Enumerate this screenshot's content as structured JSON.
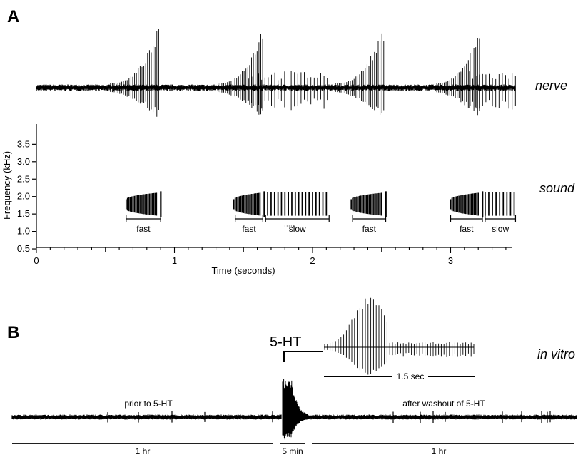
{
  "panel_a": {
    "letter": "A",
    "nerve_label": "nerve",
    "sound_label": "sound",
    "y_axis_label": "Frequency (kHz)",
    "x_axis_label": "Time (seconds)",
    "y_ticks": [
      "3.5",
      "3.0",
      "2.5",
      "2.0",
      "1.5",
      "1.0",
      "0.5"
    ],
    "x_ticks": [
      "0",
      "1",
      "2",
      "3"
    ],
    "call_labels": [
      {
        "text": "fast",
        "start": 0.65,
        "end": 0.9
      },
      {
        "text": "fast",
        "start": 1.44,
        "end": 1.64
      },
      {
        "text": "slow",
        "start": 1.66,
        "end": 2.12
      },
      {
        "text": "fast",
        "start": 2.29,
        "end": 2.53
      },
      {
        "text": "fast",
        "start": 3.0,
        "end": 3.23
      },
      {
        "text": "slow",
        "start": 3.25,
        "end": 3.47
      }
    ],
    "bursts": [
      {
        "type": "fast",
        "start": 0.65,
        "end": 0.87
      },
      {
        "type": "fast",
        "start": 1.43,
        "end": 1.62
      },
      {
        "type": "slow",
        "start": 1.65,
        "end": 2.1
      },
      {
        "type": "fast",
        "start": 2.28,
        "end": 2.5
      },
      {
        "type": "fast",
        "start": 3.0,
        "end": 3.2
      },
      {
        "type": "slow",
        "start": 3.25,
        "end": 3.46
      }
    ]
  },
  "panel_b": {
    "letter": "B",
    "in_vitro_label": "in vitro",
    "drug_label": "5-HT",
    "prior_label": "prior to 5-HT",
    "after_label": "after washout of 5-HT",
    "inset_scale_label": "1.5 sec",
    "segments": [
      "1 hr",
      "5 min",
      "1 hr"
    ]
  }
}
